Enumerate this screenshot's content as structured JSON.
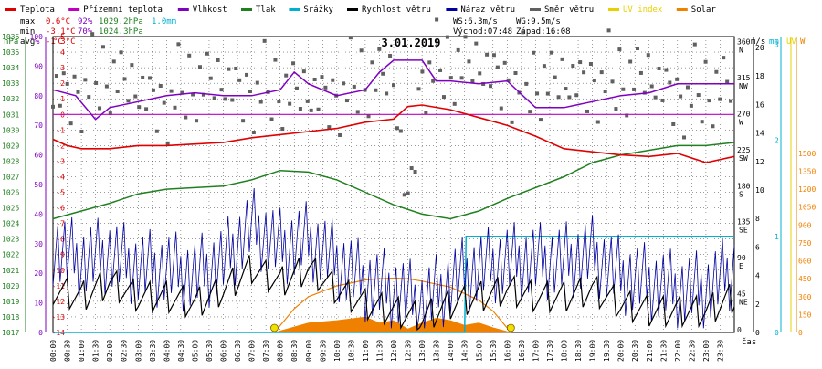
{
  "chart_data": {
    "type": "line",
    "title": "3.01.2019",
    "xlabel": "čas",
    "legend": [
      {
        "label": "Teplota",
        "color": "#e00000"
      },
      {
        "label": "Přízemní teplota",
        "color": "#c000c0"
      },
      {
        "label": "Vlhkost",
        "color": "#8000c0"
      },
      {
        "label": "Tlak",
        "color": "#208020"
      },
      {
        "label": "Srážky",
        "color": "#00b0d0"
      },
      {
        "label": "Rychlost větru",
        "color": "#000000"
      },
      {
        "label": "Náraz větru",
        "color": "#0000a0"
      },
      {
        "label": "Směr větru",
        "color": "#606060"
      },
      {
        "label": "UV index",
        "color": "#e8d000"
      },
      {
        "label": "Solar",
        "color": "#f08000"
      }
    ],
    "stats": {
      "max_label": "max",
      "max_temp": "0.6°C",
      "max_hum": "92%",
      "max_press": "1029.2hPa",
      "max_rain": "1.0mm",
      "min_label": "min",
      "min_temp": "-3.1°C",
      "min_hum": "70%",
      "min_press": "1024.3hPa",
      "avg_label": "avg",
      "avg_temp": "-1.3°C"
    },
    "info": {
      "ws": "WS:6.3m/s",
      "wg": "WG:9.5m/s",
      "sunrise": "Východ:07:48",
      "sunset": "Západ:16:08"
    },
    "axes": {
      "hPa": {
        "unit": "hPa",
        "color": "#208020",
        "min": 1017,
        "max": 1036,
        "ticks": [
          1017,
          1018,
          1019,
          1020,
          1021,
          1022,
          1023,
          1024,
          1025,
          1026,
          1027,
          1028,
          1029,
          1030,
          1031,
          1032,
          1033,
          1034,
          1035,
          1036
        ]
      },
      "hum": {
        "unit": "%",
        "color": "#8000c0",
        "min": 0,
        "max": 100,
        "ticks": [
          0,
          10,
          20,
          30,
          40,
          50,
          60,
          70,
          80,
          90,
          100
        ]
      },
      "temp": {
        "unit": "°C",
        "color": "#e00000",
        "min": -14,
        "max": 5,
        "ticks": [
          -14,
          -13,
          -12,
          -11,
          -10,
          -9,
          -8,
          -7,
          -6,
          -5,
          -4,
          -3,
          -2,
          -1,
          0,
          1,
          2,
          3,
          4,
          5
        ]
      },
      "dir": {
        "ticks": [
          {
            "v": 360,
            "l": "N"
          },
          {
            "v": 315,
            "l": "NW"
          },
          {
            "v": 270,
            "l": "W"
          },
          {
            "v": 225,
            "l": "SW"
          },
          {
            "v": 180,
            "l": "S"
          },
          {
            "v": 135,
            "l": "SE"
          },
          {
            "v": 90,
            "l": "E"
          },
          {
            "v": 45,
            "l": "NE"
          },
          {
            "v": 0,
            "l": ""
          }
        ]
      },
      "ms": {
        "unit": "m/s",
        "color": "#000000",
        "min": 0,
        "max": 20,
        "ticks": [
          0,
          2,
          4,
          6,
          8,
          10,
          12,
          14,
          16,
          18,
          20
        ]
      },
      "mm": {
        "unit": "mm",
        "color": "#00b0d0",
        "min": 0,
        "max": 3,
        "ticks": [
          0,
          1,
          2,
          3
        ]
      },
      "uv": {
        "unit": "UV",
        "color": "#e8d000"
      },
      "W": {
        "unit": "W",
        "color": "#f08000",
        "min": 0,
        "max": 1500,
        "ticks": [
          0,
          150,
          300,
          450,
          600,
          750,
          900,
          1050,
          1200,
          1350,
          1500
        ]
      }
    },
    "xticks": [
      "00:00",
      "00:30",
      "01:00",
      "01:30",
      "02:00",
      "02:30",
      "03:00",
      "03:30",
      "04:00",
      "04:30",
      "05:00",
      "05:30",
      "06:00",
      "06:30",
      "07:00",
      "07:30",
      "08:00",
      "08:30",
      "09:00",
      "09:30",
      "10:00",
      "10:30",
      "11:00",
      "11:30",
      "12:00",
      "12:30",
      "13:00",
      "13:30",
      "14:00",
      "14:30",
      "15:00",
      "15:30",
      "16:00",
      "16:30",
      "17:00",
      "17:30",
      "18:00",
      "18:30",
      "19:00",
      "19:30",
      "20:00",
      "20:30",
      "21:00",
      "21:30",
      "22:00",
      "22:30",
      "23:00",
      "23:30"
    ],
    "series": [
      {
        "name": "Teplota",
        "unit": "°C",
        "x": [
          0,
          0.5,
          1,
          2,
          3,
          4,
          5,
          6,
          7,
          8,
          9,
          10,
          11,
          12,
          12.5,
          13,
          14,
          15,
          16,
          17,
          18,
          19,
          20,
          21,
          22,
          23,
          24
        ],
        "values": [
          -1.6,
          -2.0,
          -2.2,
          -2.2,
          -2.0,
          -2.0,
          -1.9,
          -1.8,
          -1.5,
          -1.3,
          -1.1,
          -0.9,
          -0.5,
          -0.3,
          0.5,
          0.6,
          0.3,
          -0.2,
          -0.7,
          -1.4,
          -2.2,
          -2.4,
          -2.6,
          -2.7,
          -2.5,
          -3.1,
          -2.7
        ]
      },
      {
        "name": "Přízemní teplota",
        "unit": "°C",
        "x": [
          0,
          24
        ],
        "values": [
          0,
          0
        ]
      },
      {
        "name": "Vlhkost",
        "unit": "%",
        "x": [
          0,
          0.8,
          1.5,
          2,
          3,
          4,
          5,
          6,
          7,
          8,
          8.5,
          9,
          10,
          11,
          11.5,
          12,
          13,
          13.5,
          14,
          15,
          16,
          17,
          18,
          19,
          20,
          21,
          22,
          23,
          24
        ],
        "values": [
          82,
          80,
          72,
          76,
          78,
          80,
          81,
          80,
          80,
          82,
          88,
          84,
          80,
          82,
          88,
          92,
          92,
          85,
          85,
          84,
          85,
          76,
          76,
          78,
          80,
          81,
          84,
          84,
          84
        ]
      },
      {
        "name": "Tlak",
        "unit": "hPa",
        "x": [
          0,
          1,
          2,
          3,
          4,
          5,
          6,
          7,
          8,
          9,
          10,
          11,
          12,
          13,
          14,
          15,
          16,
          17,
          18,
          19,
          20,
          21,
          22,
          23,
          24
        ],
        "values": [
          1024.3,
          1024.8,
          1025.3,
          1025.9,
          1026.2,
          1026.3,
          1026.4,
          1026.8,
          1027.4,
          1027.3,
          1026.8,
          1026.0,
          1025.2,
          1024.6,
          1024.3,
          1024.8,
          1025.6,
          1026.3,
          1027.0,
          1027.9,
          1028.4,
          1028.7,
          1029.0,
          1029.0,
          1029.2
        ]
      },
      {
        "name": "Srážky",
        "unit": "mm",
        "x": [
          0,
          14.5,
          14.55,
          24
        ],
        "values": [
          0,
          0,
          1.0,
          1.0
        ]
      },
      {
        "name": "Rychlost větru",
        "unit": "m/s",
        "x": [
          0,
          1,
          2,
          3,
          4,
          5,
          6,
          7,
          8,
          9,
          10,
          11,
          12,
          13,
          14,
          15,
          16,
          17,
          18,
          19,
          20,
          21,
          22,
          23,
          24
        ],
        "values": [
          3.0,
          2.5,
          3.5,
          2.5,
          2.5,
          2.0,
          3.0,
          4.5,
          3.5,
          4.5,
          3.0,
          2.0,
          1.5,
          1.0,
          2.0,
          2.5,
          3.0,
          2.5,
          2.5,
          3.0,
          2.0,
          1.5,
          1.5,
          1.5,
          2.5
        ]
      },
      {
        "name": "Náraz větru",
        "unit": "m/s",
        "x": [
          0,
          1,
          2,
          3,
          4,
          5,
          6,
          7,
          8,
          9,
          10,
          11,
          12,
          13,
          14,
          15,
          16,
          17,
          18,
          19,
          20,
          21,
          22,
          23,
          24
        ],
        "values": [
          6.0,
          5.0,
          5.5,
          4.5,
          4.5,
          4.0,
          5.0,
          7.5,
          6.0,
          6.5,
          5.0,
          3.5,
          3.0,
          2.0,
          3.5,
          4.5,
          5.0,
          5.0,
          5.0,
          5.5,
          4.0,
          3.5,
          3.0,
          3.0,
          4.5
        ]
      },
      {
        "name": "Směr větru",
        "unit": "°",
        "x": [
          0,
          1,
          2,
          3,
          4,
          5,
          6,
          7,
          8,
          9,
          10,
          11,
          12,
          12.5,
          13,
          14,
          15,
          16,
          17,
          18,
          19,
          20,
          21,
          22,
          23,
          24
        ],
        "values": [
          300,
          305,
          310,
          300,
          290,
          300,
          310,
          305,
          290,
          295,
          300,
          305,
          315,
          150,
          330,
          320,
          330,
          320,
          300,
          310,
          320,
          305,
          315,
          300,
          290,
          305
        ]
      },
      {
        "name": "UV index",
        "unit": "UV",
        "x": [
          7.8,
          16.13
        ],
        "values": [
          0,
          0
        ]
      },
      {
        "name": "Solar",
        "unit": "W/m²",
        "x": [
          7.8,
          9,
          10,
          11,
          11.5,
          12,
          12.5,
          13,
          13.5,
          14,
          14.5,
          15,
          15.5,
          16.13
        ],
        "values": [
          0,
          80,
          100,
          130,
          80,
          100,
          30,
          80,
          120,
          100,
          60,
          80,
          40,
          0
        ]
      },
      {
        "name": "Solar max",
        "unit": "W/m²",
        "x": [
          7.8,
          8.5,
          9,
          10,
          11,
          11.5,
          12,
          12.5,
          13,
          14,
          15,
          15.5,
          16.13
        ],
        "values": [
          0,
          200,
          300,
          390,
          440,
          450,
          455,
          450,
          430,
          380,
          270,
          180,
          0
        ]
      }
    ]
  },
  "colors": {
    "frame": "#000000",
    "grid": "#000000",
    "background": "#ffffff"
  }
}
